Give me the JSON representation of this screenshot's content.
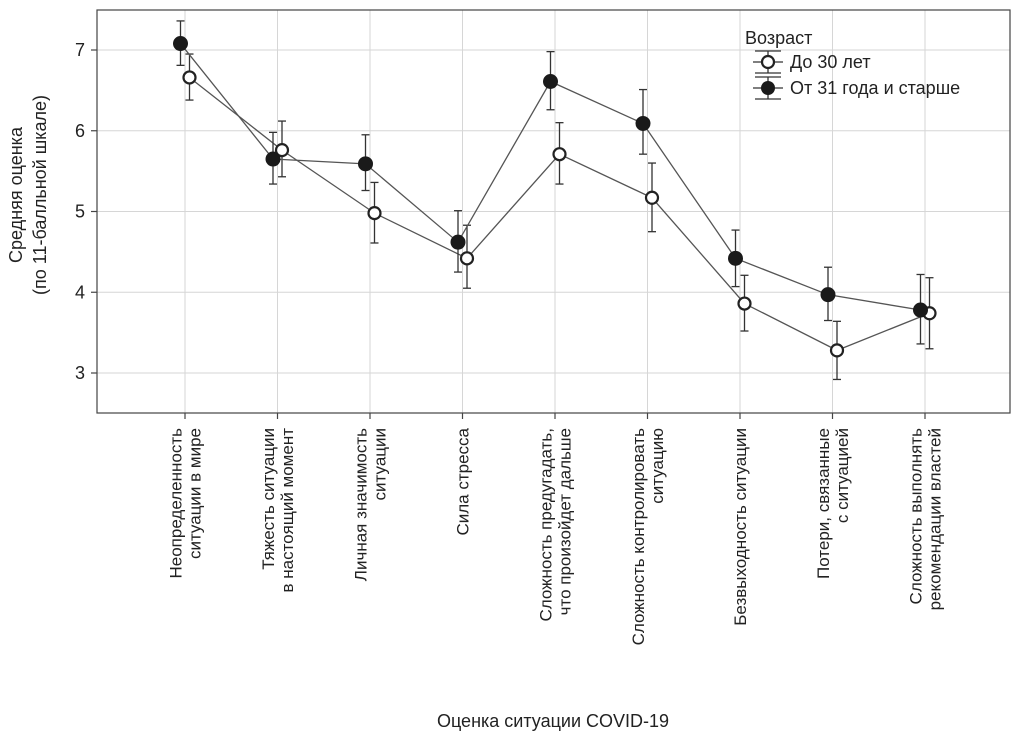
{
  "chart_data": {
    "type": "line",
    "ylabel_lines": [
      "Средняя оценка",
      "(по 11-балльной шкале)"
    ],
    "xlabel": "Оценка ситуации COVID-19",
    "ylim": [
      2.5,
      7.5
    ],
    "yticks": [
      3,
      4,
      5,
      6,
      7
    ],
    "grid": true,
    "error_bars": true,
    "legend": {
      "title": "Возраст",
      "placement": "top-right"
    },
    "categories": [
      [
        "Неопределенность",
        "ситуации в мире"
      ],
      [
        "Тяжесть ситуации",
        "в настоящий момент"
      ],
      [
        "Личная значимость",
        "ситуации"
      ],
      [
        "Сила стресса"
      ],
      [
        "Сложность предугадать,",
        "что произойдет дальше"
      ],
      [
        "Сложность контролировать",
        "ситуацию"
      ],
      [
        "Безвыходность ситуации"
      ],
      [
        "Потери, связанные",
        "с ситуацией"
      ],
      [
        "Сложность выполнять",
        "рекомендации властей"
      ]
    ],
    "series": [
      {
        "name": "До 30 лет",
        "marker": "open-circle",
        "values": [
          6.66,
          5.76,
          4.98,
          4.42,
          5.71,
          5.17,
          3.86,
          3.28,
          3.74
        ],
        "err_low": [
          6.38,
          5.43,
          4.61,
          4.05,
          5.34,
          4.75,
          3.52,
          2.92,
          3.3
        ],
        "err_high": [
          6.95,
          6.12,
          5.36,
          4.83,
          6.1,
          5.6,
          4.21,
          3.64,
          4.18
        ]
      },
      {
        "name": "От 31 года и старше",
        "marker": "filled-circle",
        "values": [
          7.08,
          5.65,
          5.59,
          4.62,
          6.61,
          6.09,
          4.42,
          3.97,
          3.78
        ],
        "err_low": [
          6.81,
          5.34,
          5.26,
          4.25,
          6.26,
          5.71,
          4.07,
          3.65,
          3.36
        ],
        "err_high": [
          7.36,
          5.98,
          5.95,
          5.01,
          6.98,
          6.51,
          4.77,
          4.31,
          4.22
        ]
      }
    ]
  }
}
